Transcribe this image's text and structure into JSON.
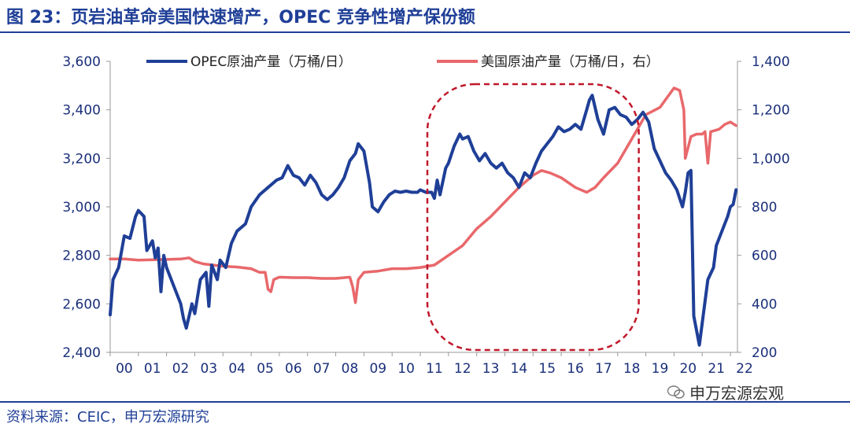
{
  "title": "图 23：页岩油革命美国快速增产，OPEC 竞争性增产保份额",
  "source": "资料来源：CEIC，申万宏源研究",
  "watermark": "申万宏源宏观",
  "colors": {
    "brand": "#1f3f97",
    "opec": "#1f3f97",
    "us": "#e8686b",
    "highlight": "#c0192b"
  },
  "chart_data": {
    "type": "line",
    "xlabel": "",
    "ylabel": "",
    "categories": [
      "00",
      "01",
      "02",
      "03",
      "04",
      "05",
      "06",
      "07",
      "08",
      "09",
      "10",
      "11",
      "12",
      "13",
      "14",
      "15",
      "16",
      "17",
      "18",
      "19",
      "20",
      "21",
      "22"
    ],
    "x_range": [
      2000,
      2022.25
    ],
    "y_left": {
      "lim": [
        2400,
        3600
      ],
      "ticks": [
        "2,400",
        "2,600",
        "2,800",
        "3,000",
        "3,200",
        "3,400",
        "3,600"
      ]
    },
    "y_right": {
      "lim": [
        200,
        1400
      ],
      "ticks": [
        "200",
        "400",
        "600",
        "800",
        "1,000",
        "1,200",
        "1,400"
      ]
    },
    "legend_position": "top",
    "series": [
      {
        "name": "OPEC原油产量（万桶/日）",
        "axis": "left",
        "points": [
          [
            2000.0,
            2555
          ],
          [
            2000.1,
            2700
          ],
          [
            2000.3,
            2750
          ],
          [
            2000.5,
            2880
          ],
          [
            2000.7,
            2870
          ],
          [
            2000.9,
            2960
          ],
          [
            2001.0,
            2985
          ],
          [
            2001.2,
            2960
          ],
          [
            2001.3,
            2820
          ],
          [
            2001.5,
            2860
          ],
          [
            2001.6,
            2790
          ],
          [
            2001.7,
            2830
          ],
          [
            2001.8,
            2650
          ],
          [
            2001.9,
            2800
          ],
          [
            2002.0,
            2750
          ],
          [
            2002.3,
            2660
          ],
          [
            2002.5,
            2600
          ],
          [
            2002.6,
            2540
          ],
          [
            2002.7,
            2500
          ],
          [
            2002.8,
            2550
          ],
          [
            2002.9,
            2600
          ],
          [
            2003.0,
            2560
          ],
          [
            2003.2,
            2700
          ],
          [
            2003.4,
            2730
          ],
          [
            2003.5,
            2590
          ],
          [
            2003.6,
            2760
          ],
          [
            2003.8,
            2700
          ],
          [
            2003.9,
            2780
          ],
          [
            2004.1,
            2750
          ],
          [
            2004.3,
            2850
          ],
          [
            2004.5,
            2900
          ],
          [
            2004.8,
            2930
          ],
          [
            2005.0,
            3000
          ],
          [
            2005.3,
            3050
          ],
          [
            2005.6,
            3080
          ],
          [
            2005.9,
            3110
          ],
          [
            2006.1,
            3120
          ],
          [
            2006.3,
            3170
          ],
          [
            2006.5,
            3130
          ],
          [
            2006.7,
            3120
          ],
          [
            2006.9,
            3090
          ],
          [
            2007.1,
            3130
          ],
          [
            2007.3,
            3100
          ],
          [
            2007.5,
            3050
          ],
          [
            2007.7,
            3030
          ],
          [
            2007.9,
            3050
          ],
          [
            2008.1,
            3080
          ],
          [
            2008.3,
            3120
          ],
          [
            2008.5,
            3190
          ],
          [
            2008.7,
            3220
          ],
          [
            2008.8,
            3260
          ],
          [
            2009.0,
            3230
          ],
          [
            2009.2,
            3100
          ],
          [
            2009.3,
            3000
          ],
          [
            2009.5,
            2980
          ],
          [
            2009.7,
            3020
          ],
          [
            2009.9,
            3050
          ],
          [
            2010.1,
            3065
          ],
          [
            2010.3,
            3060
          ],
          [
            2010.5,
            3065
          ],
          [
            2010.7,
            3060
          ],
          [
            2010.9,
            3060
          ],
          [
            2011.0,
            3070
          ],
          [
            2011.2,
            3060
          ],
          [
            2011.4,
            3060
          ],
          [
            2011.5,
            3035
          ],
          [
            2011.6,
            3110
          ],
          [
            2011.7,
            3050
          ],
          [
            2011.9,
            3160
          ],
          [
            2012.0,
            3180
          ],
          [
            2012.2,
            3250
          ],
          [
            2012.4,
            3300
          ],
          [
            2012.5,
            3280
          ],
          [
            2012.7,
            3290
          ],
          [
            2012.9,
            3230
          ],
          [
            2013.1,
            3190
          ],
          [
            2013.3,
            3220
          ],
          [
            2013.5,
            3180
          ],
          [
            2013.7,
            3160
          ],
          [
            2013.9,
            3180
          ],
          [
            2014.1,
            3140
          ],
          [
            2014.3,
            3120
          ],
          [
            2014.5,
            3080
          ],
          [
            2014.7,
            3140
          ],
          [
            2014.9,
            3120
          ],
          [
            2015.1,
            3180
          ],
          [
            2015.3,
            3230
          ],
          [
            2015.5,
            3260
          ],
          [
            2015.7,
            3290
          ],
          [
            2015.9,
            3330
          ],
          [
            2016.1,
            3310
          ],
          [
            2016.3,
            3320
          ],
          [
            2016.5,
            3340
          ],
          [
            2016.7,
            3320
          ],
          [
            2016.9,
            3400
          ],
          [
            2017.0,
            3440
          ],
          [
            2017.1,
            3460
          ],
          [
            2017.3,
            3360
          ],
          [
            2017.5,
            3300
          ],
          [
            2017.7,
            3400
          ],
          [
            2017.9,
            3410
          ],
          [
            2018.1,
            3380
          ],
          [
            2018.3,
            3370
          ],
          [
            2018.5,
            3340
          ],
          [
            2018.7,
            3360
          ],
          [
            2018.9,
            3390
          ],
          [
            2019.1,
            3350
          ],
          [
            2019.3,
            3240
          ],
          [
            2019.5,
            3190
          ],
          [
            2019.7,
            3140
          ],
          [
            2019.9,
            3110
          ],
          [
            2020.0,
            3090
          ],
          [
            2020.1,
            3070
          ],
          [
            2020.3,
            3000
          ],
          [
            2020.4,
            3060
          ],
          [
            2020.5,
            3140
          ],
          [
            2020.6,
            3150
          ],
          [
            2020.7,
            2550
          ],
          [
            2020.9,
            2430
          ],
          [
            2021.0,
            2520
          ],
          [
            2021.2,
            2700
          ],
          [
            2021.4,
            2750
          ],
          [
            2021.5,
            2840
          ],
          [
            2021.7,
            2900
          ],
          [
            2021.9,
            2960
          ],
          [
            2022.0,
            3000
          ],
          [
            2022.1,
            3010
          ],
          [
            2022.2,
            3070
          ]
        ]
      },
      {
        "name": "美国原油产量（万桶/日，右）",
        "axis": "right",
        "points": [
          [
            2000.0,
            585
          ],
          [
            2000.5,
            585
          ],
          [
            2001.0,
            580
          ],
          [
            2001.5,
            582
          ],
          [
            2002.0,
            583
          ],
          [
            2002.5,
            585
          ],
          [
            2002.8,
            590
          ],
          [
            2003.0,
            575
          ],
          [
            2003.3,
            565
          ],
          [
            2003.5,
            562
          ],
          [
            2004.0,
            555
          ],
          [
            2004.5,
            552
          ],
          [
            2005.0,
            545
          ],
          [
            2005.3,
            530
          ],
          [
            2005.5,
            530
          ],
          [
            2005.6,
            460
          ],
          [
            2005.7,
            450
          ],
          [
            2005.8,
            500
          ],
          [
            2006.0,
            510
          ],
          [
            2006.5,
            508
          ],
          [
            2007.0,
            508
          ],
          [
            2007.5,
            505
          ],
          [
            2008.0,
            505
          ],
          [
            2008.5,
            510
          ],
          [
            2008.6,
            470
          ],
          [
            2008.7,
            405
          ],
          [
            2008.8,
            500
          ],
          [
            2009.0,
            530
          ],
          [
            2009.5,
            535
          ],
          [
            2010.0,
            545
          ],
          [
            2010.5,
            545
          ],
          [
            2011.0,
            550
          ],
          [
            2011.5,
            560
          ],
          [
            2012.0,
            600
          ],
          [
            2012.5,
            640
          ],
          [
            2013.0,
            710
          ],
          [
            2013.5,
            760
          ],
          [
            2014.0,
            820
          ],
          [
            2014.5,
            880
          ],
          [
            2015.0,
            930
          ],
          [
            2015.3,
            950
          ],
          [
            2015.6,
            940
          ],
          [
            2016.0,
            920
          ],
          [
            2016.5,
            880
          ],
          [
            2016.9,
            860
          ],
          [
            2017.2,
            880
          ],
          [
            2017.5,
            920
          ],
          [
            2018.0,
            980
          ],
          [
            2018.5,
            1080
          ],
          [
            2019.0,
            1180
          ],
          [
            2019.5,
            1210
          ],
          [
            2020.0,
            1290
          ],
          [
            2020.2,
            1280
          ],
          [
            2020.35,
            1200
          ],
          [
            2020.4,
            1000
          ],
          [
            2020.6,
            1090
          ],
          [
            2020.8,
            1100
          ],
          [
            2021.0,
            1100
          ],
          [
            2021.1,
            1110
          ],
          [
            2021.2,
            980
          ],
          [
            2021.3,
            1110
          ],
          [
            2021.6,
            1120
          ],
          [
            2021.8,
            1140
          ],
          [
            2022.0,
            1150
          ],
          [
            2022.2,
            1135
          ]
        ]
      }
    ],
    "annotations": [
      {
        "type": "dashed-rounded-rect",
        "x_from": 2011.25,
        "x_to": 2018.75
      }
    ]
  }
}
